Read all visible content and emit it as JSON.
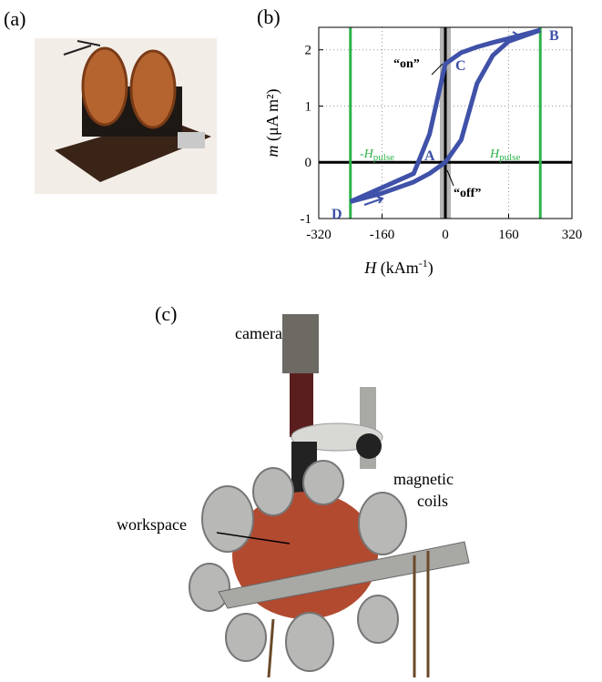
{
  "panel_labels": [
    "(a)",
    "(b)",
    "(c)"
  ],
  "chart_data": {
    "type": "line",
    "x": [
      -240,
      -160,
      -80,
      -40,
      0,
      40,
      80,
      120,
      160,
      240
    ],
    "series": [
      {
        "color": "#3f51a8",
        "values": [
          -0.7,
          -0.45,
          -0.2,
          0.5,
          1.75,
          1.95,
          2.05,
          2.13,
          2.2,
          2.35
        ]
      },
      {
        "color": "#3f51a8",
        "values": [
          -0.7,
          -0.55,
          -0.35,
          -0.2,
          0,
          0.4,
          1.4,
          1.9,
          2.15,
          2.35
        ]
      }
    ],
    "xlim": [
      -320,
      320
    ],
    "xticks": [
      -320,
      -160,
      0,
      160,
      320
    ],
    "ylim": [
      -1,
      2.4
    ],
    "yticks": [
      -1,
      0,
      1,
      2
    ],
    "grid": true,
    "xlabel": {
      "symbol": "H",
      "unit": "(kAm",
      "exponent": "-1",
      "close": ")"
    },
    "ylabel": {
      "symbol": "m",
      "unit": "(μA m²)"
    },
    "pulse_lines": {
      "values": [
        -240,
        240
      ],
      "color": "#2db34a"
    },
    "annotations": {
      "on": "“on”",
      "off": "“off”",
      "A": "A",
      "B": "B",
      "C": "C",
      "D": "D",
      "neg_pulse": "-H",
      "pos_pulse": "H",
      "pulse_sub": "pulse"
    }
  },
  "photo_labels": {
    "camera": "camera",
    "coils_1": "magnetic",
    "coils_2": "coils",
    "workspace": "workspace"
  }
}
